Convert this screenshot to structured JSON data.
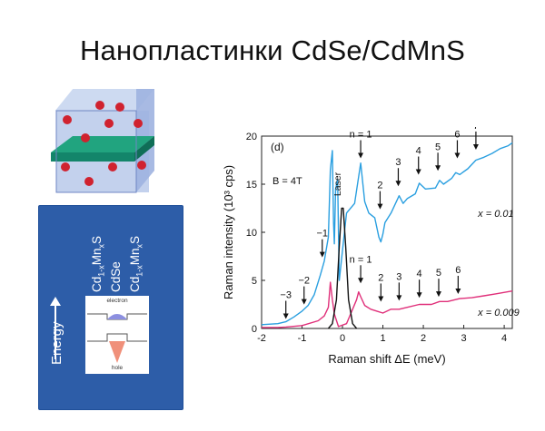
{
  "slide": {
    "title": "Нанопластинки CdSe/CdMnS"
  },
  "cube_illustration": {
    "colors": {
      "face": "#b8c9ea",
      "edge": "#6f86c4",
      "plate": "#13856a",
      "plate_top": "#21a47f",
      "ion": "#d0222f"
    }
  },
  "energy_panel": {
    "axis_label": "Energy",
    "layers": [
      {
        "base": "Cd",
        "sub1": "1-x",
        "mid": "Mn",
        "sub2": "x",
        "end": "S"
      },
      {
        "base": "CdSe",
        "sub1": "",
        "mid": "",
        "sub2": "",
        "end": ""
      },
      {
        "base": "Cd",
        "sub1": "1-x",
        "mid": "Mn",
        "sub2": "x",
        "end": "S"
      }
    ],
    "electron_label": "electron",
    "hole_label": "hole",
    "colors": {
      "background": "#2d5da8",
      "electron": "#8c8fe0",
      "hole": "#f0907a"
    }
  },
  "chart_data": {
    "type": "line",
    "panel_label": "(d)",
    "field_label": "B = 4T",
    "xlabel": "Raman shift ΔE (meV)",
    "ylabel": "Raman intensity (10³ cps)",
    "xlim": [
      -2,
      4.2
    ],
    "ylim": [
      0,
      20
    ],
    "xticks": [
      -2,
      -1,
      0,
      1,
      2,
      3,
      4
    ],
    "yticks": [
      0,
      5,
      10,
      15,
      20
    ],
    "laser_label": "Laser",
    "series": [
      {
        "name": "x = 0.01",
        "color": "#2a9fe0",
        "x": [
          -2,
          -1.6,
          -1.4,
          -1.2,
          -1.0,
          -0.85,
          -0.7,
          -0.55,
          -0.45,
          -0.35,
          -0.3,
          -0.25,
          -0.22,
          -0.2,
          -0.17,
          -0.12,
          -0.08,
          0.1,
          0.3,
          0.45,
          0.55,
          0.65,
          0.8,
          0.9,
          0.95,
          1.0,
          1.05,
          1.2,
          1.4,
          1.5,
          1.6,
          1.8,
          1.9,
          2.05,
          2.3,
          2.4,
          2.5,
          2.7,
          2.8,
          2.9,
          3.1,
          3.3,
          3.5,
          3.7,
          3.9,
          4.1,
          4.2
        ],
        "y": [
          0.4,
          0.5,
          0.7,
          1.2,
          1.8,
          2.4,
          3.5,
          5.5,
          7.0,
          9.5,
          16.5,
          18.5,
          11.0,
          8.8,
          14.5,
          15.5,
          5.0,
          12.0,
          13.0,
          17.2,
          13.2,
          12.0,
          11.5,
          9.5,
          9.0,
          9.8,
          11.0,
          12.0,
          13.8,
          13.0,
          13.5,
          14.0,
          15.1,
          14.5,
          14.6,
          15.4,
          15.0,
          15.6,
          16.2,
          16.0,
          16.6,
          17.5,
          17.8,
          18.2,
          18.7,
          19.0,
          19.3
        ]
      },
      {
        "name": "x = 0.009",
        "color": "#e0307a",
        "x": [
          -2,
          -1.6,
          -1.4,
          -1.0,
          -0.6,
          -0.45,
          -0.35,
          -0.3,
          -0.25,
          -0.2,
          -0.1,
          0.1,
          0.25,
          0.35,
          0.4,
          0.45,
          0.55,
          0.7,
          0.85,
          1.0,
          1.2,
          1.4,
          1.6,
          1.9,
          2.2,
          2.4,
          2.6,
          2.9,
          3.2,
          3.5,
          3.8,
          4.2
        ],
        "y": [
          0.1,
          0.1,
          0.15,
          0.3,
          0.8,
          1.3,
          2.2,
          4.8,
          3.0,
          1.5,
          0.2,
          0.5,
          2.0,
          3.0,
          3.8,
          3.3,
          2.4,
          2.0,
          1.8,
          1.6,
          2.0,
          2.0,
          2.2,
          2.5,
          2.5,
          2.8,
          2.8,
          3.1,
          3.2,
          3.4,
          3.6,
          3.9
        ]
      },
      {
        "name": "Laser",
        "color": "#111111",
        "x": [
          -0.35,
          -0.25,
          -0.15,
          -0.08,
          -0.02,
          0.02,
          0.08,
          0.15,
          0.25,
          0.35
        ],
        "y": [
          0,
          0.5,
          3.0,
          8.5,
          12.5,
          12.5,
          8.5,
          3.0,
          0.5,
          0
        ]
      }
    ],
    "annotations": [
      {
        "text": "−3",
        "x": -1.4,
        "y": 0.8
      },
      {
        "text": "−2",
        "x": -0.95,
        "y": 2.3
      },
      {
        "text": "−1",
        "x": -0.5,
        "y": 7.2
      },
      {
        "text": "n = 1",
        "x": 0.45,
        "y": 17.5
      },
      {
        "text": "2",
        "x": 0.93,
        "y": 12.2
      },
      {
        "text": "3",
        "x": 1.38,
        "y": 14.6
      },
      {
        "text": "4",
        "x": 1.88,
        "y": 15.8
      },
      {
        "text": "5",
        "x": 2.36,
        "y": 16.2
      },
      {
        "text": "6",
        "x": 2.84,
        "y": 17.5
      },
      {
        "text": "7",
        "x": 3.3,
        "y": 18.4
      },
      {
        "text": "n = 1",
        "x": 0.45,
        "y": 4.5
      },
      {
        "text": "2",
        "x": 0.95,
        "y": 2.6
      },
      {
        "text": "3",
        "x": 1.4,
        "y": 2.7
      },
      {
        "text": "4",
        "x": 1.9,
        "y": 3.0
      },
      {
        "text": "5",
        "x": 2.38,
        "y": 3.1
      },
      {
        "text": "6",
        "x": 2.86,
        "y": 3.4
      }
    ],
    "series_labels": [
      {
        "text": "x = 0.01",
        "x": 3.35,
        "y": 11.6,
        "color": "#2a9fe0"
      },
      {
        "text": "x = 0.009",
        "x": 3.35,
        "y": 1.3,
        "color": "#e0307a"
      }
    ]
  }
}
